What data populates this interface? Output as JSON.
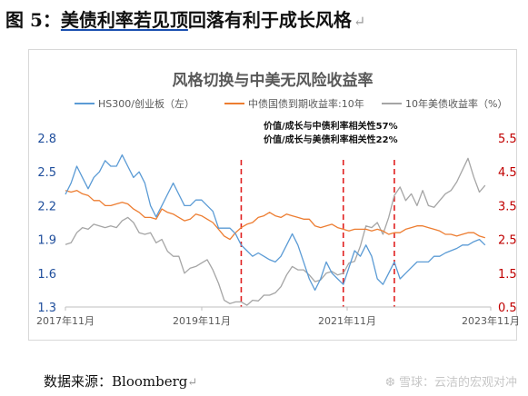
{
  "figure": {
    "heading_prefix": "图 5：",
    "heading_underlined": "美债利率若见顶",
    "heading_rest": "回落有利于成长风格",
    "return_mark": "↵"
  },
  "source": {
    "text": "数据来源：Bloomberg"
  },
  "watermark": {
    "text": "❆ 雪球：云洁的宏观对冲"
  },
  "chart_data": {
    "type": "line",
    "title": "风格切换与中美无风险收益率",
    "x_ticks": [
      "2017年11月",
      "2019年11月",
      "2021年11月",
      "2023年11月"
    ],
    "x_range": [
      "2017-11",
      "2024-02"
    ],
    "y_left": {
      "range": [
        1.3,
        2.8
      ],
      "ticks": [
        "1.3",
        "1.6",
        "1.9",
        "2.2",
        "2.5",
        "2.8"
      ]
    },
    "y_right": {
      "range": [
        0.5,
        5.5
      ],
      "ticks": [
        "0.5",
        "1.5",
        "2.5",
        "3.5",
        "4.5",
        "5.5"
      ]
    },
    "annotations": [
      "价值/成长与中债利率相关性57%",
      "价值/成长与美债利率相关性22%"
    ],
    "vlines": [
      "2020-06",
      "2021-12",
      "2022-09"
    ],
    "vline_color": "#e02020",
    "series": [
      {
        "name": "HS300/创业板（左）",
        "axis": "left",
        "color": "#5b9bd5",
        "x": [
          "2017-11",
          "2017-12",
          "2018-01",
          "2018-02",
          "2018-03",
          "2018-04",
          "2018-05",
          "2018-06",
          "2018-07",
          "2018-08",
          "2018-09",
          "2018-10",
          "2018-11",
          "2018-12",
          "2019-01",
          "2019-02",
          "2019-03",
          "2019-04",
          "2019-05",
          "2019-06",
          "2019-07",
          "2019-08",
          "2019-09",
          "2019-10",
          "2019-11",
          "2019-12",
          "2020-01",
          "2020-02",
          "2020-03",
          "2020-04",
          "2020-05",
          "2020-06",
          "2020-07",
          "2020-08",
          "2020-09",
          "2020-10",
          "2020-11",
          "2020-12",
          "2021-01",
          "2021-02",
          "2021-03",
          "2021-04",
          "2021-05",
          "2021-06",
          "2021-07",
          "2021-08",
          "2021-09",
          "2021-10",
          "2021-11",
          "2021-12",
          "2022-01",
          "2022-02",
          "2022-03",
          "2022-04",
          "2022-05",
          "2022-06",
          "2022-07",
          "2022-08",
          "2022-09",
          "2022-10",
          "2022-11",
          "2022-12",
          "2023-01",
          "2023-02",
          "2023-03",
          "2023-04",
          "2023-05",
          "2023-06",
          "2023-07",
          "2023-08",
          "2023-09",
          "2023-10",
          "2023-11",
          "2023-12",
          "2024-01"
        ],
        "values": [
          2.3,
          2.4,
          2.55,
          2.45,
          2.35,
          2.45,
          2.5,
          2.6,
          2.55,
          2.55,
          2.65,
          2.55,
          2.45,
          2.5,
          2.4,
          2.2,
          2.1,
          2.2,
          2.3,
          2.4,
          2.3,
          2.2,
          2.2,
          2.25,
          2.25,
          2.2,
          2.15,
          2.0,
          2.0,
          2.0,
          1.95,
          1.85,
          1.8,
          1.75,
          1.78,
          1.75,
          1.72,
          1.7,
          1.75,
          1.85,
          1.95,
          1.85,
          1.7,
          1.55,
          1.45,
          1.55,
          1.7,
          1.6,
          1.55,
          1.5,
          1.65,
          1.8,
          1.75,
          1.85,
          1.75,
          1.55,
          1.5,
          1.6,
          1.7,
          1.55,
          1.6,
          1.65,
          1.7,
          1.7,
          1.7,
          1.75,
          1.75,
          1.78,
          1.8,
          1.82,
          1.85,
          1.85,
          1.88,
          1.9,
          1.85
        ]
      },
      {
        "name": "中债国债到期收益率:10年",
        "axis": "right",
        "color": "#ed7d31",
        "x": [
          "2017-11",
          "2017-12",
          "2018-01",
          "2018-02",
          "2018-03",
          "2018-04",
          "2018-05",
          "2018-06",
          "2018-07",
          "2018-08",
          "2018-09",
          "2018-10",
          "2018-11",
          "2018-12",
          "2019-01",
          "2019-02",
          "2019-03",
          "2019-04",
          "2019-05",
          "2019-06",
          "2019-07",
          "2019-08",
          "2019-09",
          "2019-10",
          "2019-11",
          "2019-12",
          "2020-01",
          "2020-02",
          "2020-03",
          "2020-04",
          "2020-05",
          "2020-06",
          "2020-07",
          "2020-08",
          "2020-09",
          "2020-10",
          "2020-11",
          "2020-12",
          "2021-01",
          "2021-02",
          "2021-03",
          "2021-04",
          "2021-05",
          "2021-06",
          "2021-07",
          "2021-08",
          "2021-09",
          "2021-10",
          "2021-11",
          "2021-12",
          "2022-01",
          "2022-02",
          "2022-03",
          "2022-04",
          "2022-05",
          "2022-06",
          "2022-07",
          "2022-08",
          "2022-09",
          "2022-10",
          "2022-11",
          "2022-12",
          "2023-01",
          "2023-02",
          "2023-03",
          "2023-04",
          "2023-05",
          "2023-06",
          "2023-07",
          "2023-08",
          "2023-09",
          "2023-10",
          "2023-11",
          "2023-12",
          "2024-01"
        ],
        "values": [
          3.95,
          3.9,
          3.95,
          3.85,
          3.8,
          3.65,
          3.65,
          3.5,
          3.5,
          3.55,
          3.6,
          3.55,
          3.4,
          3.3,
          3.15,
          3.15,
          3.1,
          3.4,
          3.3,
          3.25,
          3.15,
          3.05,
          3.1,
          3.25,
          3.2,
          3.1,
          3.0,
          2.8,
          2.6,
          2.5,
          2.7,
          2.85,
          2.95,
          3.0,
          3.15,
          3.2,
          3.3,
          3.2,
          3.15,
          3.25,
          3.2,
          3.15,
          3.1,
          3.1,
          2.9,
          2.85,
          2.9,
          2.95,
          2.85,
          2.8,
          2.75,
          2.8,
          2.8,
          2.8,
          2.75,
          2.8,
          2.75,
          2.65,
          2.7,
          2.7,
          2.8,
          2.85,
          2.9,
          2.9,
          2.85,
          2.8,
          2.75,
          2.65,
          2.65,
          2.6,
          2.65,
          2.7,
          2.7,
          2.6,
          2.55
        ]
      },
      {
        "name": "10年美债收益率（%）",
        "axis": "right",
        "color": "#a5a5a5",
        "x": [
          "2017-11",
          "2017-12",
          "2018-01",
          "2018-02",
          "2018-03",
          "2018-04",
          "2018-05",
          "2018-06",
          "2018-07",
          "2018-08",
          "2018-09",
          "2018-10",
          "2018-11",
          "2018-12",
          "2019-01",
          "2019-02",
          "2019-03",
          "2019-04",
          "2019-05",
          "2019-06",
          "2019-07",
          "2019-08",
          "2019-09",
          "2019-10",
          "2019-11",
          "2019-12",
          "2020-01",
          "2020-02",
          "2020-03",
          "2020-04",
          "2020-05",
          "2020-06",
          "2020-07",
          "2020-08",
          "2020-09",
          "2020-10",
          "2020-11",
          "2020-12",
          "2021-01",
          "2021-02",
          "2021-03",
          "2021-04",
          "2021-05",
          "2021-06",
          "2021-07",
          "2021-08",
          "2021-09",
          "2021-10",
          "2021-11",
          "2021-12",
          "2022-01",
          "2022-02",
          "2022-03",
          "2022-04",
          "2022-05",
          "2022-06",
          "2022-07",
          "2022-08",
          "2022-09",
          "2022-10",
          "2022-11",
          "2022-12",
          "2023-01",
          "2023-02",
          "2023-03",
          "2023-04",
          "2023-05",
          "2023-06",
          "2023-07",
          "2023-08",
          "2023-09",
          "2023-10",
          "2023-11",
          "2023-12",
          "2024-01"
        ],
        "values": [
          2.35,
          2.4,
          2.7,
          2.85,
          2.8,
          2.95,
          2.9,
          2.85,
          2.9,
          2.85,
          3.05,
          3.15,
          3.0,
          2.7,
          2.65,
          2.7,
          2.4,
          2.5,
          2.15,
          2.0,
          2.0,
          1.5,
          1.65,
          1.7,
          1.8,
          1.9,
          1.6,
          1.2,
          0.7,
          0.6,
          0.65,
          0.65,
          0.55,
          0.7,
          0.68,
          0.85,
          0.85,
          0.92,
          1.1,
          1.45,
          1.7,
          1.6,
          1.6,
          1.45,
          1.25,
          1.3,
          1.5,
          1.55,
          1.45,
          1.5,
          1.8,
          1.85,
          2.3,
          2.9,
          2.85,
          3.0,
          2.65,
          3.15,
          3.8,
          4.05,
          3.65,
          3.85,
          3.5,
          3.95,
          3.5,
          3.45,
          3.65,
          3.85,
          3.95,
          4.2,
          4.55,
          4.9,
          4.35,
          3.9,
          4.1
        ]
      }
    ]
  }
}
